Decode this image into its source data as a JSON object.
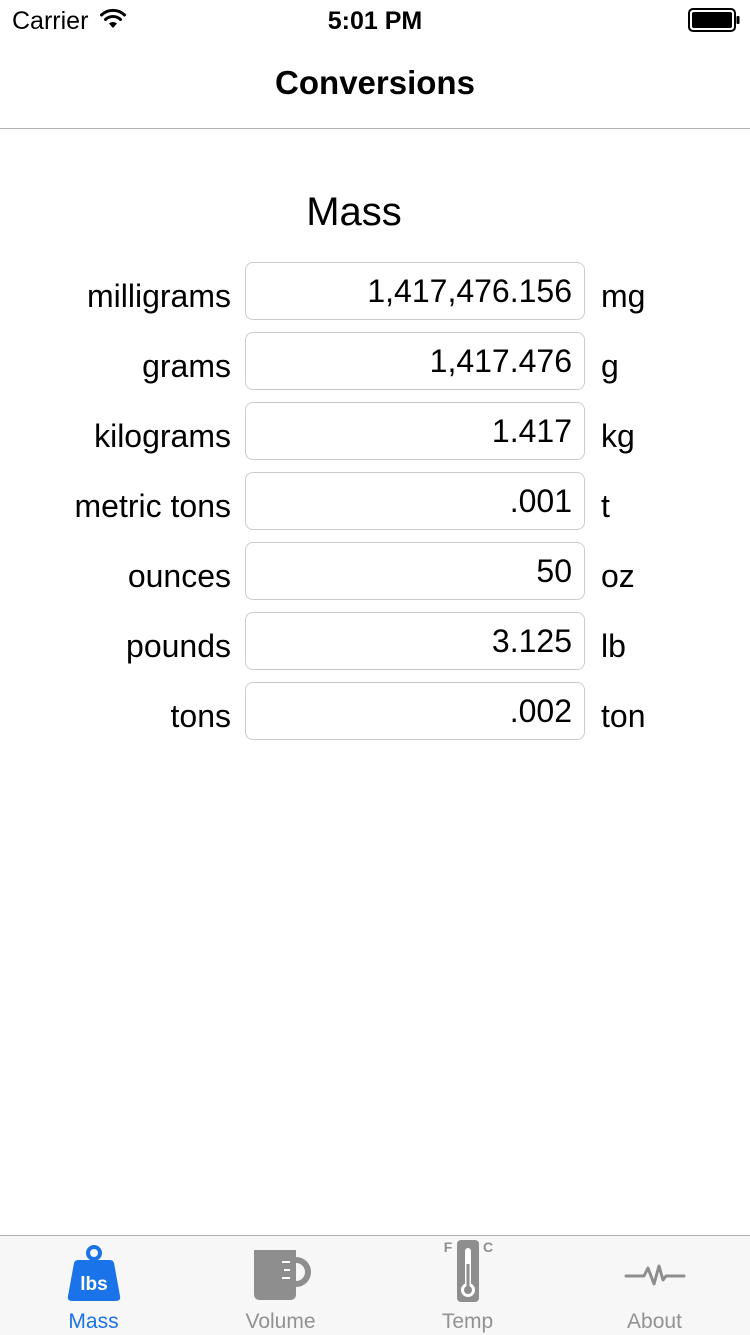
{
  "status_bar": {
    "carrier": "Carrier",
    "time": "5:01 PM",
    "wifi_icon": "wifi-icon",
    "battery_icon": "battery-icon"
  },
  "nav": {
    "title": "Conversions"
  },
  "section": {
    "title": "Mass"
  },
  "rows": [
    {
      "name": "milligrams",
      "value": "1,417,476.156",
      "abbr": "mg"
    },
    {
      "name": "grams",
      "value": "1,417.476",
      "abbr": "g"
    },
    {
      "name": "kilograms",
      "value": "1.417",
      "abbr": "kg"
    },
    {
      "name": "metric tons",
      "value": ".001",
      "abbr": "t"
    },
    {
      "name": "ounces",
      "value": "50",
      "abbr": "oz"
    },
    {
      "name": "pounds",
      "value": "3.125",
      "abbr": "lb"
    },
    {
      "name": "tons",
      "value": ".002",
      "abbr": "ton"
    }
  ],
  "tabs": [
    {
      "label": "Mass",
      "icon": "weight-icon",
      "active": true,
      "icon_text": "lbs"
    },
    {
      "label": "Volume",
      "icon": "mug-icon",
      "active": false
    },
    {
      "label": "Temp",
      "icon": "thermometer-icon",
      "active": false,
      "icon_text_left": "F",
      "icon_text_right": "C"
    },
    {
      "label": "About",
      "icon": "pulse-icon",
      "active": false
    }
  ],
  "colors": {
    "accent": "#1a73e8",
    "inactive": "#929292",
    "inactive_icon": "#8e8e8e"
  }
}
